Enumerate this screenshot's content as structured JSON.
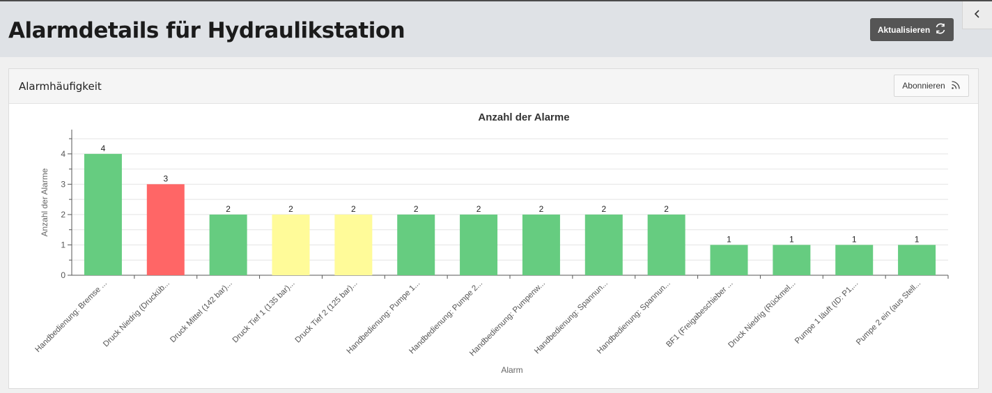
{
  "header": {
    "title": "Alarmdetails für Hydraulikstation",
    "refresh_label": "Aktualisieren"
  },
  "card": {
    "title": "Alarmhäufigkeit",
    "subscribe_label": "Abonnieren"
  },
  "colors": {
    "green": "#66cc80",
    "red": "#ff6666",
    "yellow": "#fffb99"
  },
  "chart_data": {
    "type": "bar",
    "title": "Anzahl der Alarme",
    "xlabel": "Alarm",
    "ylabel": "Anzahl der Alarme",
    "ylim": [
      0,
      4.8
    ],
    "yticks": [
      0,
      1,
      2,
      3,
      4
    ],
    "grid": true,
    "categories": [
      "Handbedienung: Bremse ...",
      "Druck Niedrig (Drucküb...",
      "Druck Mittel (142 bar)...",
      "Druck Tief 1 (135 bar)...",
      "Druck Tief 2 (125 bar)...",
      "Handbedienung: Pumpe 1...",
      "Handbedienung: Pumpe 2...",
      "Handbedienung: Pumpenw...",
      "Handbedienung: Spannun...",
      "Handbedienung: Spannun...",
      "BF1 (Freigabeschieber ...",
      "Druck Niedrig (Rückmel...",
      "Pumpe 1 läuft (ID: P1,...",
      "Pumpe 2 ein (aus Stell..."
    ],
    "values": [
      4,
      3,
      2,
      2,
      2,
      2,
      2,
      2,
      2,
      2,
      1,
      1,
      1,
      1
    ],
    "bar_colors": [
      "green",
      "red",
      "green",
      "yellow",
      "yellow",
      "green",
      "green",
      "green",
      "green",
      "green",
      "green",
      "green",
      "green",
      "green"
    ]
  }
}
